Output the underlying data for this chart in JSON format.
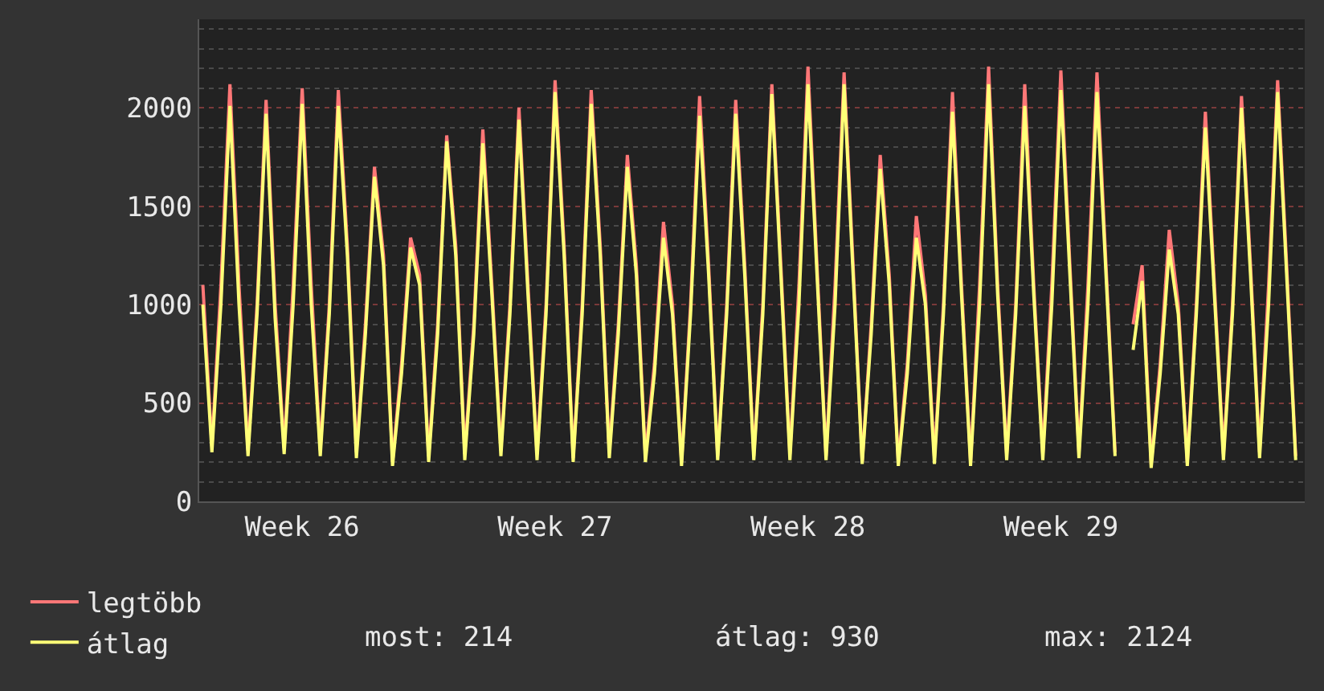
{
  "chart_data": {
    "type": "line",
    "categories": [
      null,
      null,
      null,
      null,
      null,
      null,
      null,
      null,
      null,
      null,
      null,
      "Week 26",
      null,
      null,
      null,
      null,
      null,
      null,
      null,
      null,
      null,
      null,
      null,
      null,
      null,
      null,
      null,
      null,
      null,
      null,
      null,
      null,
      null,
      null,
      null,
      null,
      null,
      null,
      null,
      "Week 27",
      null,
      null,
      null,
      null,
      null,
      null,
      null,
      null,
      null,
      null,
      null,
      null,
      null,
      null,
      null,
      null,
      null,
      null,
      null,
      null,
      null,
      null,
      null,
      null,
      null,
      null,
      null,
      "Week 28",
      null,
      null,
      null,
      null,
      null,
      null,
      null,
      null,
      null,
      null,
      null,
      null,
      null,
      null,
      null,
      null,
      null,
      null,
      null,
      null,
      null,
      null,
      null,
      null,
      null,
      null,
      null,
      "Week 29",
      null,
      null,
      null,
      null,
      null,
      null,
      null,
      null,
      null,
      null,
      null,
      null,
      null,
      null,
      null,
      null,
      null,
      null,
      null,
      null,
      null,
      null,
      null,
      null,
      null,
      null
    ],
    "series": [
      {
        "name": "legtöbb",
        "color": "#ff7777",
        "values": [
          1100,
          280,
          1100,
          2120,
          1100,
          260,
          1000,
          2040,
          1000,
          270,
          1100,
          2100,
          1100,
          260,
          1000,
          2090,
          1300,
          250,
          900,
          1700,
          1250,
          200,
          700,
          1340,
          1150,
          230,
          900,
          1860,
          1300,
          240,
          900,
          1890,
          1100,
          260,
          1000,
          2000,
          1100,
          240,
          1000,
          2140,
          1300,
          220,
          1000,
          2090,
          1300,
          250,
          900,
          1760,
          1200,
          230,
          700,
          1420,
          1000,
          200,
          1000,
          2060,
          1200,
          230,
          1000,
          2040,
          1200,
          230,
          1000,
          2120,
          1200,
          240,
          1100,
          2210,
          1200,
          230,
          1100,
          2180,
          1200,
          200,
          900,
          1760,
          1150,
          200,
          700,
          1450,
          1050,
          220,
          1000,
          2080,
          1100,
          200,
          1100,
          2210,
          1100,
          240,
          1000,
          2120,
          1100,
          240,
          1100,
          2190,
          1200,
          250,
          1100,
          2180,
          1200,
          250,
          null,
          900,
          1200,
          190,
          700,
          1380,
          1000,
          200,
          1000,
          1980,
          1100,
          240,
          1000,
          2060,
          1200,
          250,
          1100,
          2140,
          1200,
          230
        ]
      },
      {
        "name": "átlag",
        "color": "#ffff77",
        "values": [
          1000,
          250,
          1000,
          2010,
          1000,
          230,
          950,
          1970,
          930,
          240,
          1000,
          2020,
          1000,
          230,
          950,
          2010,
          1250,
          220,
          850,
          1650,
          1200,
          180,
          650,
          1290,
          1100,
          200,
          850,
          1830,
          1250,
          210,
          850,
          1820,
          1050,
          230,
          950,
          1940,
          1050,
          210,
          950,
          2080,
          1250,
          200,
          950,
          2020,
          1250,
          220,
          850,
          1700,
          1150,
          200,
          650,
          1340,
          950,
          180,
          950,
          1960,
          1150,
          210,
          950,
          1970,
          1150,
          210,
          950,
          2070,
          1150,
          210,
          1000,
          2120,
          1150,
          210,
          1000,
          2120,
          1150,
          190,
          850,
          1690,
          1100,
          180,
          650,
          1340,
          1000,
          190,
          950,
          1980,
          1050,
          180,
          1000,
          2120,
          1050,
          210,
          950,
          2010,
          1050,
          210,
          1000,
          2090,
          1150,
          220,
          1000,
          2080,
          1150,
          230,
          null,
          770,
          1120,
          170,
          650,
          1280,
          950,
          180,
          950,
          1900,
          1050,
          210,
          950,
          2000,
          1150,
          220,
          1000,
          2080,
          1150,
          210
        ]
      }
    ],
    "ylim": [
      0,
      2450
    ],
    "yticks": [
      0,
      500,
      1000,
      1500,
      2000,
      {
        "value": 100,
        "label": null
      },
      {
        "value": 200,
        "label": null
      },
      {
        "value": 300,
        "label": null
      },
      {
        "value": 400,
        "label": null
      },
      {
        "value": 600,
        "label": null
      },
      {
        "value": 700,
        "label": null
      },
      {
        "value": 800,
        "label": null
      },
      {
        "value": 900,
        "label": null
      },
      {
        "value": 1100,
        "label": null
      },
      {
        "value": 1200,
        "label": null
      },
      {
        "value": 1300,
        "label": null
      },
      {
        "value": 1400,
        "label": null
      },
      {
        "value": 1600,
        "label": null
      },
      {
        "value": 1700,
        "label": null
      },
      {
        "value": 1800,
        "label": null
      },
      {
        "value": 1900,
        "label": null
      },
      {
        "value": 2100,
        "label": null
      },
      {
        "value": 2200,
        "label": null
      },
      {
        "value": 2300,
        "label": null
      },
      {
        "value": 2400,
        "label": null
      }
    ],
    "grid": "y",
    "legend": "bottom left",
    "marker": "none",
    "line_style": "solid",
    "annotations": [
      "most: 214",
      "átlag: 930",
      "max: 2124"
    ]
  }
}
